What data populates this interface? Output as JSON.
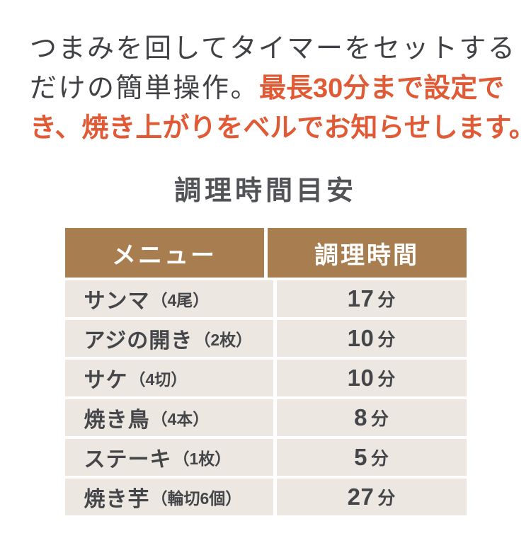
{
  "intro": {
    "line1": "つまみを回してタイマーをセットする",
    "line2_gray": "だけの簡単操作。",
    "line2_accent": "最長30分まで設定で",
    "line3_accent": "き、焼き上がりをベルでお知らせします。"
  },
  "section": {
    "title": "調理時間目安"
  },
  "table": {
    "headers": {
      "menu": "メニュー",
      "time": "調理時間"
    },
    "rows": [
      {
        "name": "サンマ",
        "note": "（4尾）",
        "time": "17",
        "unit": "分"
      },
      {
        "name": "アジの開き",
        "note": "（2枚）",
        "time": "10",
        "unit": "分"
      },
      {
        "name": "サケ",
        "note": "（4切）",
        "time": "10",
        "unit": "分"
      },
      {
        "name": "焼き鳥",
        "note": "（4本）",
        "time": "8",
        "unit": "分"
      },
      {
        "name": "ステーキ",
        "note": "（1枚）",
        "time": "5",
        "unit": "分"
      },
      {
        "name": "焼き芋",
        "note": "（輪切6個）",
        "time": "27",
        "unit": "分"
      }
    ]
  },
  "colors": {
    "accent_orange": "#e05a35",
    "header_brown": "#a87d4f",
    "row_beige": "#ece8e1",
    "text_dark_gray": "#3f4145",
    "table_text_gray": "#45464a"
  }
}
